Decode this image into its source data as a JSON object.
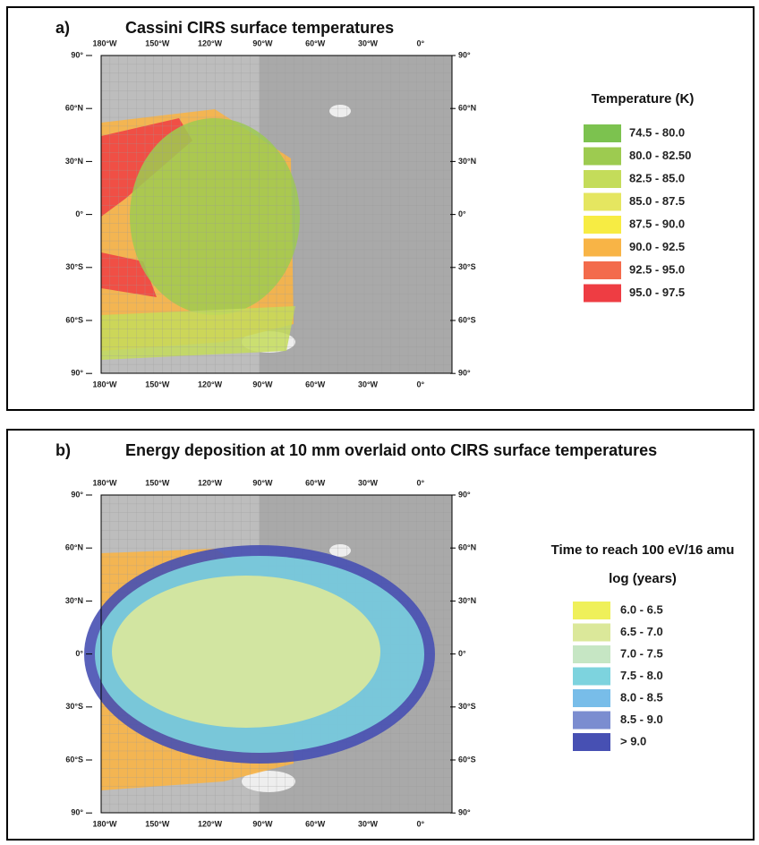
{
  "panels": [
    {
      "label": "a)",
      "title": "Cassini CIRS surface temperatures",
      "lat_labels": [
        "90°",
        "60°N",
        "30°N",
        "0°",
        "30°S",
        "60°S",
        "90°"
      ],
      "lon_labels": [
        "180°W",
        "150°W",
        "120°W",
        "90°W",
        "60°W",
        "30°W",
        "0°"
      ],
      "legend": {
        "title": "Temperature (K)",
        "items": [
          {
            "label": "74.5 - 80.0",
            "color": "#7cc24f"
          },
          {
            "label": "80.0 - 82.50",
            "color": "#9dcb50"
          },
          {
            "label": "82.5 - 85.0",
            "color": "#c4dc5a"
          },
          {
            "label": "85.0 - 87.5",
            "color": "#e5e660"
          },
          {
            "label": "87.5 - 90.0",
            "color": "#f7ec43"
          },
          {
            "label": "90.0 - 92.5",
            "color": "#f8b446"
          },
          {
            "label": "92.5 - 95.0",
            "color": "#f36b4c"
          },
          {
            "label": "95.0 - 97.5",
            "color": "#ee3d43"
          }
        ]
      }
    },
    {
      "label": "b)",
      "title": "Energy deposition at 10 mm overlaid onto CIRS surface temperatures",
      "lat_labels": [
        "90°",
        "60°N",
        "30°N",
        "0°",
        "30°S",
        "60°S",
        "90°"
      ],
      "lon_labels": [
        "180°W",
        "150°W",
        "120°W",
        "90°W",
        "60°W",
        "30°W",
        "0°"
      ],
      "legend": {
        "title": "Time to reach 100 eV/16 amu",
        "subtitle": "log (years)",
        "items": [
          {
            "label": "6.0 - 6.5",
            "color": "#eff05a"
          },
          {
            "label": "6.5 - 7.0",
            "color": "#dbe89a"
          },
          {
            "label": "7.0 - 7.5",
            "color": "#c6e6c4"
          },
          {
            "label": "7.5 - 8.0",
            "color": "#7dd3de"
          },
          {
            "label": "8.0 - 8.5",
            "color": "#78bde9"
          },
          {
            "label": "8.5 - 9.0",
            "color": "#7b8dd0"
          },
          {
            "label": "> 9.0",
            "color": "#4750b3"
          }
        ]
      }
    }
  ]
}
